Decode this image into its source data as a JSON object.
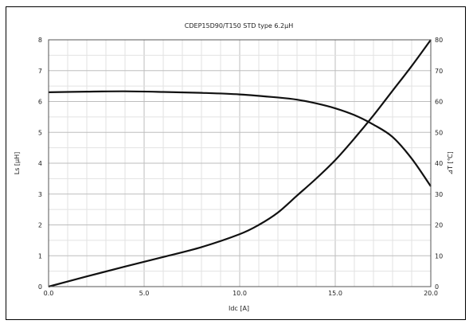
{
  "chart_data": {
    "type": "line",
    "title": "CDEP15D90/T150 STD type 6.2µH",
    "xlabel": "Idc [A]",
    "ylabel_left": "Ls [µH]",
    "ylabel_right": "⊿T [℃]",
    "xlim": [
      0,
      20
    ],
    "ylim_left": [
      0,
      8
    ],
    "ylim_right": [
      0,
      80
    ],
    "x_ticks": [
      "0.0",
      "5.0",
      "10.0",
      "15.0",
      "20.0"
    ],
    "y_left_ticks": [
      "0",
      "1",
      "2",
      "3",
      "4",
      "5",
      "6",
      "7",
      "8"
    ],
    "y_right_ticks": [
      "0",
      "10",
      "20",
      "30",
      "40",
      "50",
      "60",
      "70",
      "80"
    ],
    "grid": true,
    "series": [
      {
        "axis": "left",
        "color": "#111111",
        "points": [
          [
            0,
            6.3
          ],
          [
            2,
            6.32
          ],
          [
            4,
            6.33
          ],
          [
            6,
            6.31
          ],
          [
            8,
            6.28
          ],
          [
            10,
            6.23
          ],
          [
            12,
            6.13
          ],
          [
            13,
            6.06
          ],
          [
            14,
            5.94
          ],
          [
            15,
            5.78
          ],
          [
            16,
            5.56
          ],
          [
            17,
            5.25
          ],
          [
            18,
            4.85
          ],
          [
            19,
            4.15
          ],
          [
            20,
            3.25
          ]
        ]
      },
      {
        "axis": "right",
        "color": "#111111",
        "points": [
          [
            0,
            0
          ],
          [
            2,
            3.3
          ],
          [
            4,
            6.5
          ],
          [
            6,
            9.6
          ],
          [
            8,
            12.8
          ],
          [
            10,
            17
          ],
          [
            11,
            20
          ],
          [
            12,
            24
          ],
          [
            13,
            29.5
          ],
          [
            14,
            35
          ],
          [
            15,
            41
          ],
          [
            16,
            48
          ],
          [
            17,
            55.5
          ],
          [
            18,
            63.5
          ],
          [
            19,
            71.5
          ],
          [
            20,
            80
          ]
        ]
      }
    ]
  }
}
